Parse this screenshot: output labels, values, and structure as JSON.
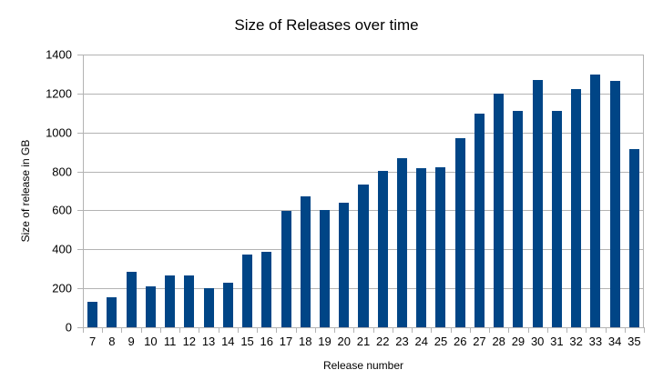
{
  "chart_data": {
    "type": "bar",
    "title": "Size of Releases over time",
    "xlabel": "Release number",
    "ylabel": "Size of release in GB",
    "ylim": [
      0,
      1400
    ],
    "yticks": [
      0,
      200,
      400,
      600,
      800,
      1000,
      1200,
      1400
    ],
    "grid": true,
    "legend": null,
    "bar_color": "#004586",
    "categories": [
      "7",
      "8",
      "9",
      "10",
      "11",
      "12",
      "13",
      "14",
      "15",
      "16",
      "17",
      "18",
      "19",
      "20",
      "21",
      "22",
      "23",
      "24",
      "25",
      "26",
      "27",
      "28",
      "29",
      "30",
      "31",
      "32",
      "33",
      "34",
      "35"
    ],
    "values": [
      129,
      155,
      287,
      209,
      267,
      267,
      203,
      231,
      372,
      389,
      597,
      671,
      602,
      641,
      732,
      805,
      867,
      817,
      823,
      969,
      1098,
      1198,
      1113,
      1268,
      1112,
      1223,
      1298,
      1265,
      917
    ]
  }
}
